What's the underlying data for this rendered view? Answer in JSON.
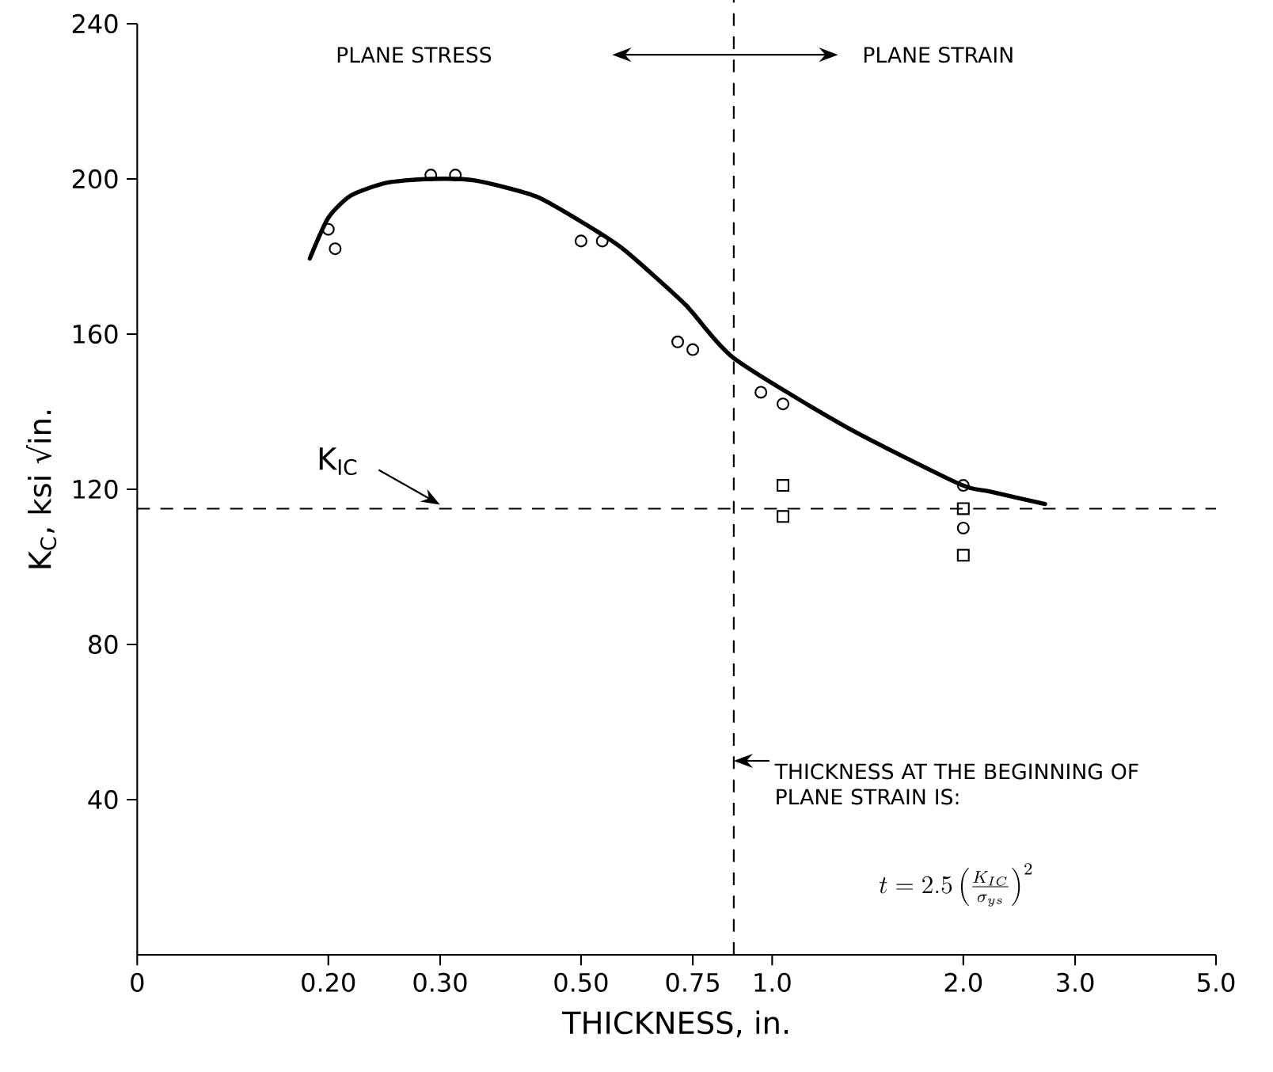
{
  "chart_data": {
    "type": "scatter",
    "xlabel": "THICKNESS, in.",
    "ylabel": "K$_{C}$, ksi √in.",
    "log": "x",
    "xlim": [
      0.1,
      5.0
    ],
    "ylim": [
      0,
      240
    ],
    "xticks": [
      {
        "value": 0.1,
        "label": "0"
      },
      {
        "value": 0.2,
        "label": "0.20"
      },
      {
        "value": 0.3,
        "label": "0.30"
      },
      {
        "value": 0.5,
        "label": "0.50"
      },
      0.75,
      {
        "value": 1.0,
        "label": "1.0"
      },
      {
        "value": 2.0,
        "label": "2.0"
      },
      {
        "value": 3.0,
        "label": "3.0"
      },
      {
        "value": 5.0,
        "label": "5.0"
      }
    ],
    "yticks": [
      40,
      80,
      120,
      160,
      200,
      240
    ],
    "series": [
      {
        "marker": "circle",
        "color": "#000000",
        "x": [
          0.2,
          0.205,
          0.29,
          0.317,
          0.5,
          0.54,
          0.71,
          0.75,
          0.96,
          1.04,
          2.0,
          2.0
        ],
        "values": [
          187,
          182,
          201,
          201,
          184,
          184,
          158,
          156,
          145,
          142,
          121,
          110
        ]
      },
      {
        "marker": "square",
        "color": "#000000",
        "x": [
          1.04,
          1.04,
          2.0,
          2.0
        ],
        "values": [
          121,
          113,
          115,
          103
        ]
      },
      {
        "type": "line",
        "marker": "none",
        "line_style": "solid",
        "color": "#000000",
        "x": [
          0.187,
          0.2,
          0.217,
          0.247,
          0.29,
          0.34,
          0.426,
          0.526,
          0.587,
          0.73,
          0.87,
          1.31,
          1.97,
          2.19,
          2.69
        ],
        "values": [
          179.5,
          190,
          195.7,
          199,
          200,
          199.6,
          195.4,
          186.8,
          181.5,
          167.6,
          153.8,
          136,
          121.4,
          119.5,
          116.2
        ]
      }
    ],
    "ref_lines": [
      {
        "axis": "y",
        "value": 115,
        "label": "K$_{IC}$",
        "line_style": "dashed",
        "color": "#000000"
      },
      {
        "axis": "x",
        "value": 0.87,
        "label": "THICKNESS AT THE BEGINNING OF PLANE STRAIN IS:",
        "line_style": "dashed",
        "color": "#000000"
      }
    ],
    "annotations": [
      "PLANE STRESS",
      "PLANE STRAIN",
      "t=2.5\\left(\\frac{K_{IC}}{\\sigma_{ys}}\\right)^{2}"
    ],
    "grid": false
  }
}
